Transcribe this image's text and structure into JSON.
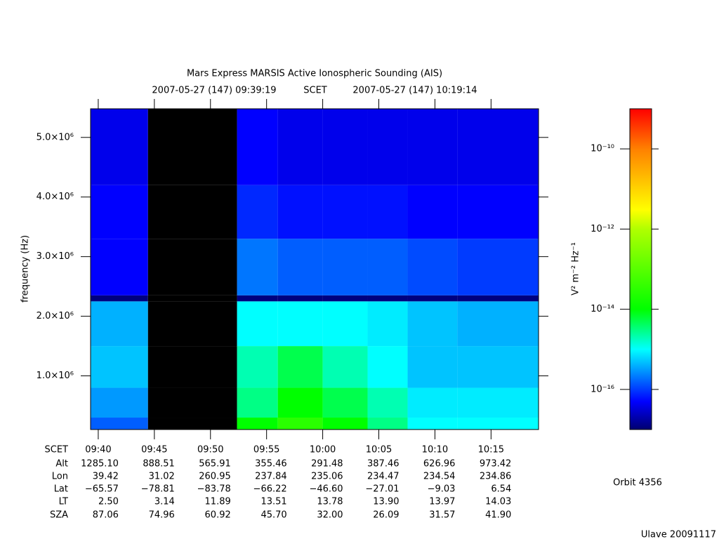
{
  "chart_data": {
    "type": "spectrogram",
    "title": "Mars Express MARSIS Active Ionospheric Sounding (AIS)",
    "subtitle_start": "2007-05-27 (147) 09:39:19",
    "subtitle_mid": "SCET",
    "subtitle_end": "2007-05-27 (147) 10:19:14",
    "y_label": "frequency (Hz)",
    "z_label": "V² m⁻² Hz⁻¹",
    "xlim": [
      "09:39:19",
      "10:19:14"
    ],
    "xticks": [
      "09:40",
      "09:45",
      "09:50",
      "09:55",
      "10:00",
      "10:05",
      "10:10",
      "10:15"
    ],
    "ylim": [
      100000,
      5480000
    ],
    "yticks": [
      {
        "value": 1000000,
        "label": "1.0×10⁶"
      },
      {
        "value": 2000000,
        "label": "2.0×10⁶"
      },
      {
        "value": 3000000,
        "label": "3.0×10⁶"
      },
      {
        "value": 4000000,
        "label": "4.0×10⁶"
      },
      {
        "value": 5000000,
        "label": "5.0×10⁶"
      }
    ],
    "x_edges": [
      "09:39:19",
      "09:44:26",
      "09:52:22",
      "09:56:00",
      "10:00:00",
      "10:04:00",
      "10:07:34",
      "10:12:00",
      "10:19:14"
    ],
    "y_edges": [
      100000,
      300000,
      800000,
      1500000,
      2250000,
      2350000,
      3300000,
      4200000,
      5480000
    ],
    "z": [
      [
        1.5e-16,
        null,
        1e-14,
        3e-14,
        1e-14,
        3e-15,
        1e-15,
        1e-15
      ],
      [
        3e-16,
        null,
        3e-15,
        1e-14,
        5e-15,
        2e-15,
        8e-16,
        8e-16
      ],
      [
        5e-16,
        null,
        2e-15,
        5e-15,
        2e-15,
        1e-15,
        5e-16,
        5e-16
      ],
      [
        4e-16,
        null,
        1e-15,
        1e-15,
        1e-15,
        8e-16,
        5e-16,
        4e-16
      ],
      [
        1.2e-17,
        null,
        1.2e-17,
        1.2e-17,
        1.2e-17,
        1.2e-17,
        1.2e-17,
        1.2e-17
      ],
      [
        5e-17,
        null,
        2e-16,
        1.5e-16,
        1.5e-16,
        1.5e-16,
        1.2e-16,
        1e-16
      ],
      [
        5e-17,
        null,
        8e-17,
        6e-17,
        6e-17,
        6e-17,
        5e-17,
        5e-17
      ],
      [
        4e-17,
        null,
        5e-17,
        4e-17,
        4e-17,
        4e-17,
        4e-17,
        4e-17
      ]
    ],
    "gap_color": "#000000",
    "z_log": true,
    "zlim": [
      1e-17,
      1e-09
    ],
    "zticks": [
      {
        "value": 1e-10,
        "label": "10⁻¹⁰"
      },
      {
        "value": 1e-12,
        "label": "10⁻¹²"
      },
      {
        "value": 1e-14,
        "label": "10⁻¹⁴"
      },
      {
        "value": 1e-16,
        "label": "10⁻¹⁶"
      }
    ],
    "colormap": [
      {
        "value": 1e-17,
        "color": "#000070"
      },
      {
        "value": 5e-17,
        "color": "#0000ff"
      },
      {
        "value": 1e-15,
        "color": "#00ffff"
      },
      {
        "value": 1e-14,
        "color": "#00ff00"
      },
      {
        "value": 1e-12,
        "color": "#b0ff00"
      },
      {
        "value": 3e-12,
        "color": "#ffff00"
      },
      {
        "value": 1e-10,
        "color": "#ff8000"
      },
      {
        "value": 1e-09,
        "color": "#ff0000"
      }
    ],
    "ephemeris": {
      "scet_label": "SCET",
      "labels": [
        "Alt",
        "Lon",
        "Lat",
        "LT",
        "SZA"
      ],
      "rows": [
        [
          "1285.10",
          "888.51",
          "565.91",
          "355.46",
          "291.48",
          "387.46",
          "626.96",
          "973.42"
        ],
        [
          "39.42",
          "31.02",
          "260.95",
          "237.84",
          "235.06",
          "234.47",
          "234.54",
          "234.86"
        ],
        [
          "−65.57",
          "−78.81",
          "−83.78",
          "−66.22",
          "−46.60",
          "−27.01",
          "−9.03",
          "6.54"
        ],
        [
          "2.50",
          "3.14",
          "11.89",
          "13.51",
          "13.78",
          "13.90",
          "13.97",
          "14.03"
        ],
        [
          "87.06",
          "74.96",
          "60.92",
          "45.70",
          "32.00",
          "26.09",
          "31.57",
          "41.90"
        ]
      ]
    },
    "orbit": "Orbit 4356",
    "footer": "Ulave 20091117"
  }
}
